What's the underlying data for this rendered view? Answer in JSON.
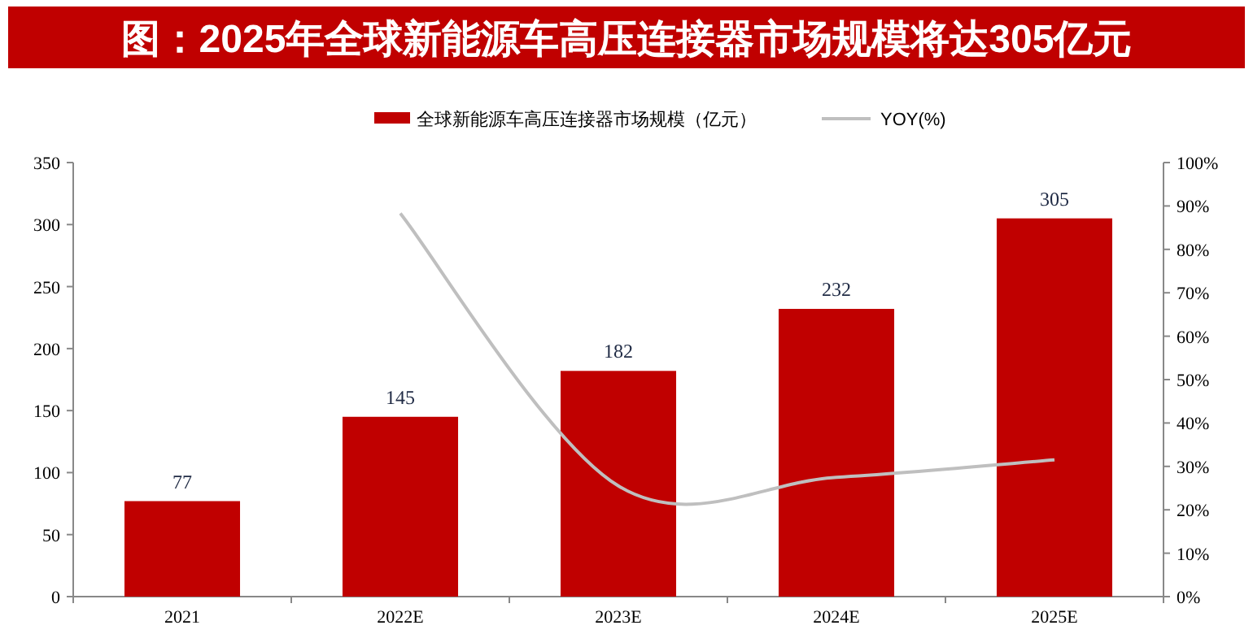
{
  "chart_data": {
    "type": "bar",
    "title": "图：2025年全球新能源车高压连接器市场规模将达305亿元",
    "categories": [
      "2021",
      "2022E",
      "2023E",
      "2024E",
      "2025E"
    ],
    "series": [
      {
        "name": "全球新能源车高压连接器市场规模（亿元）",
        "color": "#c00000",
        "values": [
          77,
          145,
          182,
          232,
          305
        ],
        "value_labels": [
          "77",
          "145",
          "182",
          "232",
          "305"
        ]
      },
      {
        "name": "YOY(%)",
        "type": "line",
        "axis": "y2",
        "color": "#bfbfbf",
        "values": [
          null,
          88.3,
          25.5,
          27.5,
          31.5
        ]
      }
    ],
    "ylim": [
      0,
      350
    ],
    "yticks": [
      0,
      50,
      100,
      150,
      200,
      250,
      300,
      350
    ],
    "y2lim": [
      0,
      100
    ],
    "y2ticks": [
      {
        "value": 0,
        "label": "0%"
      },
      {
        "value": 10,
        "label": "10%"
      },
      {
        "value": 20,
        "label": "20%"
      },
      {
        "value": 30,
        "label": "30%"
      },
      {
        "value": 40,
        "label": "40%"
      },
      {
        "value": 50,
        "label": "50%"
      },
      {
        "value": 60,
        "label": "60%"
      },
      {
        "value": 70,
        "label": "70%"
      },
      {
        "value": 80,
        "label": "80%"
      },
      {
        "value": 90,
        "label": "90%"
      },
      {
        "value": 100,
        "label": "100%"
      }
    ],
    "grid": false,
    "legend": "top",
    "marker": "none"
  }
}
